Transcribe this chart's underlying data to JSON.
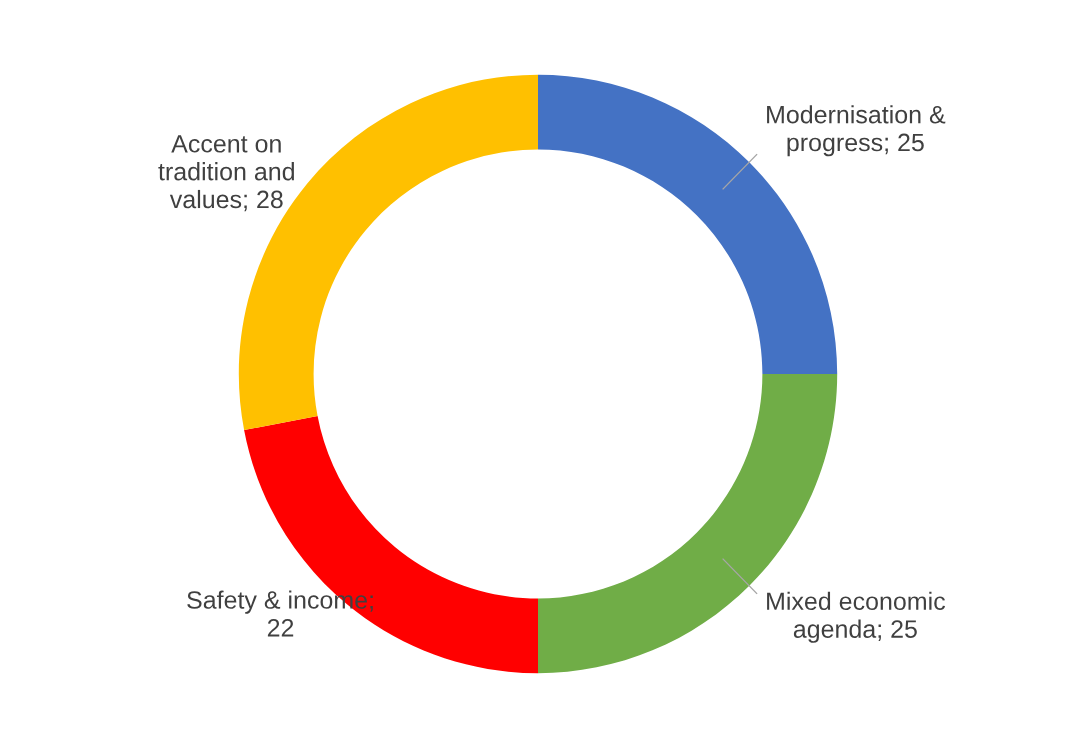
{
  "chart_data": {
    "type": "donut",
    "categories": [
      "Modernisation &\nprogress; 25",
      "Mixed economic\nagenda; 25",
      "Safety & income;\n22",
      "Accent on\ntradition and\nvalues; 28"
    ],
    "values": [
      25,
      25,
      22,
      28
    ],
    "colors": [
      "#4472c4",
      "#70ad47",
      "#ff0000",
      "#ffc000"
    ]
  }
}
